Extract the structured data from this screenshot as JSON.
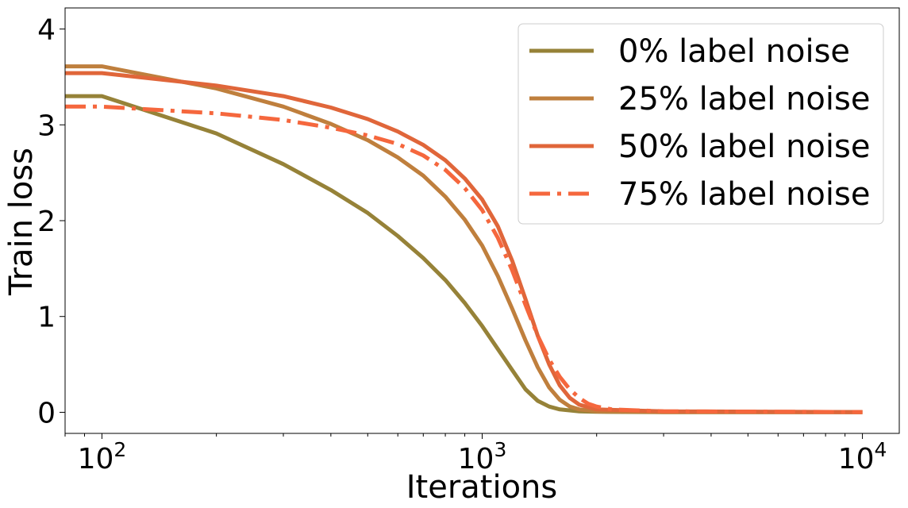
{
  "chart_data": {
    "type": "line",
    "title": "",
    "xlabel": "Iterations",
    "ylabel": "Train loss",
    "xscale": "log",
    "xlim": [
      80,
      12500
    ],
    "ylim": [
      -0.22,
      4.22
    ],
    "xticks": [
      {
        "value": 100,
        "base": "10",
        "exp": "2"
      },
      {
        "value": 1000,
        "base": "10",
        "exp": "3"
      },
      {
        "value": 10000,
        "base": "10",
        "exp": "4"
      }
    ],
    "yticks": [
      {
        "value": 0,
        "label": "0"
      },
      {
        "value": 1,
        "label": "1"
      },
      {
        "value": 2,
        "label": "2"
      },
      {
        "value": 3,
        "label": "3"
      },
      {
        "value": 4,
        "label": "4"
      }
    ],
    "grid": false,
    "legend_position": "top-right",
    "series": [
      {
        "name": "0% label noise",
        "color": "#968238",
        "dash": "solid",
        "points": [
          [
            80,
            3.3
          ],
          [
            100,
            3.3
          ],
          [
            200,
            2.91
          ],
          [
            300,
            2.59
          ],
          [
            400,
            2.32
          ],
          [
            500,
            2.08
          ],
          [
            600,
            1.84
          ],
          [
            700,
            1.61
          ],
          [
            800,
            1.38
          ],
          [
            900,
            1.14
          ],
          [
            1000,
            0.9
          ],
          [
            1100,
            0.66
          ],
          [
            1200,
            0.44
          ],
          [
            1300,
            0.24
          ],
          [
            1400,
            0.12
          ],
          [
            1500,
            0.06
          ],
          [
            1600,
            0.03
          ],
          [
            1800,
            0.01
          ],
          [
            2000,
            0.005
          ],
          [
            3000,
            0.002
          ],
          [
            10000,
            0.001
          ]
        ]
      },
      {
        "name": "25% label noise",
        "color": "#bf7f3d",
        "dash": "solid",
        "points": [
          [
            80,
            3.61
          ],
          [
            100,
            3.61
          ],
          [
            200,
            3.38
          ],
          [
            300,
            3.19
          ],
          [
            400,
            3.01
          ],
          [
            500,
            2.84
          ],
          [
            600,
            2.66
          ],
          [
            700,
            2.47
          ],
          [
            800,
            2.25
          ],
          [
            900,
            2.01
          ],
          [
            1000,
            1.74
          ],
          [
            1100,
            1.42
          ],
          [
            1200,
            1.08
          ],
          [
            1300,
            0.75
          ],
          [
            1400,
            0.47
          ],
          [
            1500,
            0.26
          ],
          [
            1600,
            0.13
          ],
          [
            1700,
            0.06
          ],
          [
            1800,
            0.03
          ],
          [
            2000,
            0.01
          ],
          [
            3000,
            0.003
          ],
          [
            10000,
            0.001
          ]
        ]
      },
      {
        "name": "50% label noise",
        "color": "#e0663a",
        "dash": "solid",
        "points": [
          [
            80,
            3.54
          ],
          [
            100,
            3.54
          ],
          [
            200,
            3.41
          ],
          [
            300,
            3.3
          ],
          [
            400,
            3.18
          ],
          [
            500,
            3.06
          ],
          [
            600,
            2.93
          ],
          [
            700,
            2.79
          ],
          [
            800,
            2.63
          ],
          [
            900,
            2.44
          ],
          [
            1000,
            2.22
          ],
          [
            1100,
            1.94
          ],
          [
            1200,
            1.58
          ],
          [
            1300,
            1.18
          ],
          [
            1400,
            0.8
          ],
          [
            1500,
            0.5
          ],
          [
            1600,
            0.28
          ],
          [
            1700,
            0.15
          ],
          [
            1800,
            0.08
          ],
          [
            2000,
            0.03
          ],
          [
            3000,
            0.01
          ],
          [
            10000,
            0.002
          ]
        ]
      },
      {
        "name": "75% label noise",
        "color": "#f5673d",
        "dash": "dashdot",
        "points": [
          [
            80,
            3.19
          ],
          [
            100,
            3.19
          ],
          [
            200,
            3.12
          ],
          [
            300,
            3.05
          ],
          [
            400,
            2.97
          ],
          [
            500,
            2.89
          ],
          [
            600,
            2.8
          ],
          [
            700,
            2.68
          ],
          [
            800,
            2.53
          ],
          [
            900,
            2.34
          ],
          [
            1000,
            2.11
          ],
          [
            1100,
            1.82
          ],
          [
            1200,
            1.48
          ],
          [
            1300,
            1.12
          ],
          [
            1400,
            0.8
          ],
          [
            1500,
            0.55
          ],
          [
            1600,
            0.37
          ],
          [
            1700,
            0.24
          ],
          [
            1800,
            0.15
          ],
          [
            1900,
            0.09
          ],
          [
            2000,
            0.06
          ],
          [
            2200,
            0.03
          ],
          [
            3000,
            0.01
          ],
          [
            10000,
            0.003
          ]
        ]
      }
    ]
  }
}
